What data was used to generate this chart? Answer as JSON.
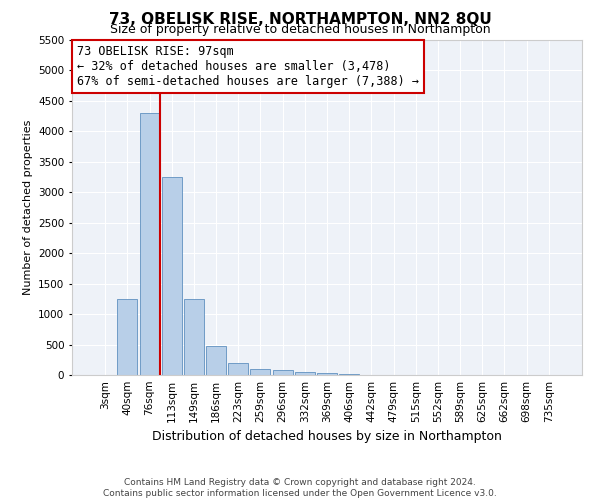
{
  "title": "73, OBELISK RISE, NORTHAMPTON, NN2 8QU",
  "subtitle": "Size of property relative to detached houses in Northampton",
  "xlabel": "Distribution of detached houses by size in Northampton",
  "ylabel": "Number of detached properties",
  "categories": [
    "3sqm",
    "40sqm",
    "76sqm",
    "113sqm",
    "149sqm",
    "186sqm",
    "223sqm",
    "259sqm",
    "296sqm",
    "332sqm",
    "369sqm",
    "406sqm",
    "442sqm",
    "479sqm",
    "515sqm",
    "552sqm",
    "589sqm",
    "625sqm",
    "662sqm",
    "698sqm",
    "735sqm"
  ],
  "values": [
    0,
    1250,
    4300,
    3250,
    1250,
    475,
    200,
    100,
    75,
    50,
    30,
    20,
    0,
    0,
    0,
    0,
    0,
    0,
    0,
    0,
    0
  ],
  "bar_color": "#b8cfe8",
  "bar_edge_color": "#6090c0",
  "ylim_max": 5500,
  "yticks": [
    0,
    500,
    1000,
    1500,
    2000,
    2500,
    3000,
    3500,
    4000,
    4500,
    5000,
    5500
  ],
  "property_line_color": "#cc0000",
  "property_line_x": 2.45,
  "annotation_line1": "73 OBELISK RISE: 97sqm",
  "annotation_line2": "← 32% of detached houses are smaller (3,478)",
  "annotation_line3": "67% of semi-detached houses are larger (7,388) →",
  "annotation_box_facecolor": "#ffffff",
  "annotation_box_edgecolor": "#cc0000",
  "footer_line1": "Contains HM Land Registry data © Crown copyright and database right 2024.",
  "footer_line2": "Contains public sector information licensed under the Open Government Licence v3.0.",
  "bg_color": "#eef2f8",
  "grid_color": "#ffffff",
  "title_fontsize": 11,
  "subtitle_fontsize": 9,
  "axis_label_fontsize": 9,
  "tick_fontsize": 7.5,
  "ylabel_fontsize": 8,
  "annotation_fontsize": 8.5,
  "footer_fontsize": 6.5
}
